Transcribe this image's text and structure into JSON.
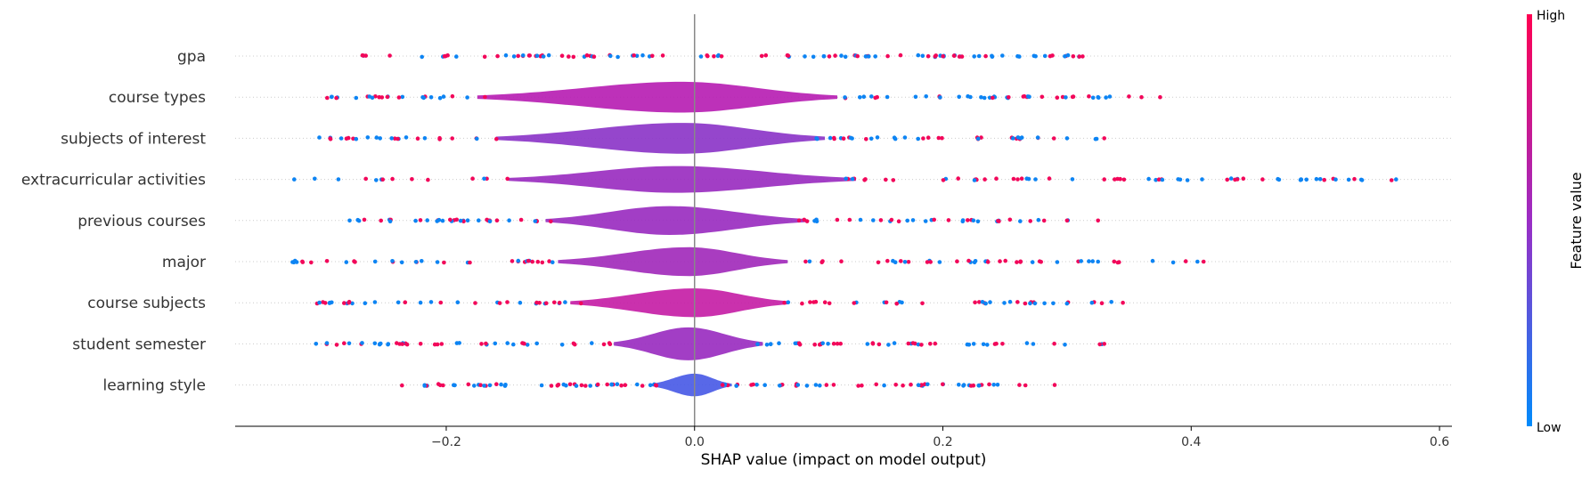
{
  "chart_data": {
    "type": "scatter",
    "subtype": "shap-violin-summary",
    "xlabel": "SHAP value (impact on model output)",
    "xlim": [
      -0.37,
      0.61
    ],
    "xticks": [
      -0.2,
      0.0,
      0.2,
      0.4,
      0.6
    ],
    "xtick_labels": [
      "−0.2",
      "0.0",
      "0.2",
      "0.4",
      "0.6"
    ],
    "zero_line": 0.0,
    "row_gridlines": "dotted",
    "colorbar": {
      "title": "Feature value",
      "high_label": "High",
      "low_label": "Low",
      "low_color": "#008bfb",
      "high_color": "#ff0052"
    },
    "features": [
      {
        "name": "gpa",
        "min": -0.27,
        "max": 0.315,
        "violin_halfwidth": [],
        "violin_color": "#9b2dbd",
        "outliers": []
      },
      {
        "name": "course types",
        "min": -0.31,
        "max": 0.375,
        "violin": {
          "start": -0.175,
          "end": 0.115,
          "peak": -0.01,
          "height": 0.75
        },
        "violin_color": "#b71fb3",
        "outliers": [
          0.325,
          0.36,
          0.375
        ]
      },
      {
        "name": "subjects of interest",
        "min": -0.31,
        "max": 0.33,
        "violin": {
          "start": -0.16,
          "end": 0.105,
          "peak": -0.01,
          "height": 0.75
        },
        "violin_color": "#8c36c8",
        "outliers": [
          0.3,
          0.33
        ]
      },
      {
        "name": "extracurricular activities",
        "min": -0.325,
        "max": 0.565,
        "violin": {
          "start": -0.15,
          "end": 0.13,
          "peak": -0.015,
          "height": 0.65
        },
        "violin_color": "#9a2ec0",
        "outliers": [
          0.33,
          0.565
        ]
      },
      {
        "name": "previous courses",
        "min": -0.28,
        "max": 0.325,
        "violin": {
          "start": -0.12,
          "end": 0.09,
          "peak": -0.02,
          "height": 0.7
        },
        "violin_color": "#9a2ec0",
        "outliers": [
          0.3,
          0.325
        ]
      },
      {
        "name": "major",
        "min": -0.325,
        "max": 0.41,
        "violin": {
          "start": -0.11,
          "end": 0.075,
          "peak": -0.005,
          "height": 0.7
        },
        "violin_color": "#a22bbb",
        "outliers": [
          0.405,
          0.41,
          0.325
        ]
      },
      {
        "name": "course subjects",
        "min": -0.305,
        "max": 0.345,
        "violin": {
          "start": -0.1,
          "end": 0.075,
          "peak": 0.0,
          "height": 0.7
        },
        "violin_color": "#c51fa6",
        "outliers": [
          0.32,
          0.345
        ]
      },
      {
        "name": "student semester",
        "min": -0.305,
        "max": 0.33,
        "violin": {
          "start": -0.065,
          "end": 0.055,
          "peak": -0.005,
          "height": 0.8
        },
        "violin_color": "#9a2ec0",
        "outliers": [
          0.33
        ]
      },
      {
        "name": "learning style",
        "min": -0.24,
        "max": 0.29,
        "violin": {
          "start": -0.035,
          "end": 0.03,
          "peak": 0.0,
          "height": 0.55
        },
        "violin_color": "#4a5be6",
        "outliers": [
          0.29
        ]
      }
    ]
  }
}
